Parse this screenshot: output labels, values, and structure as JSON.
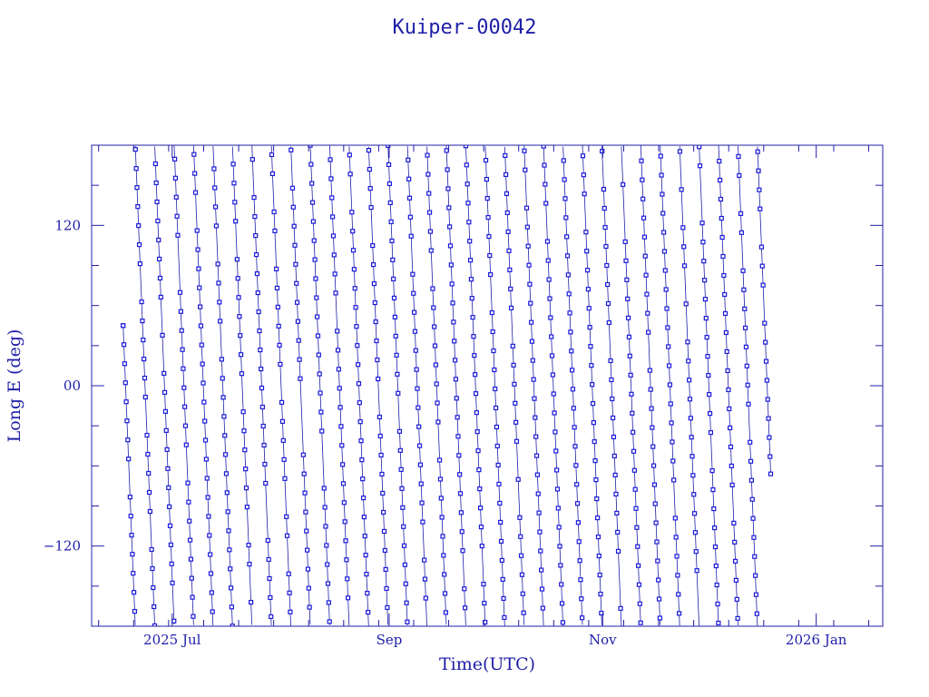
{
  "chart_data": {
    "type": "line",
    "title": "Kuiper-00042",
    "xlabel": "Time(UTC)",
    "ylabel": "Long E (deg)",
    "x_range": [
      "2025-06-08",
      "2026-01-20"
    ],
    "ylim": [
      -180,
      180
    ],
    "x_ticks": [
      {
        "label": "2025 Jul",
        "date": "2025-07-01"
      },
      {
        "label": "Sep",
        "date": "2025-09-01"
      },
      {
        "label": "Nov",
        "date": "2025-11-01"
      },
      {
        "label": "2026 Jan",
        "date": "2026-01-01"
      }
    ],
    "y_ticks": [
      {
        "label": "120",
        "value": 120
      },
      {
        "label": "00",
        "value": 0
      },
      {
        "label": "−120",
        "value": -120
      }
    ],
    "grid": false,
    "legend": "none",
    "series": [
      {
        "x_start": "2025-06-17",
        "x_end": "2025-12-19",
        "start_longitude": 45,
        "end_longitude": -66,
        "drift_deg_per_day": -65,
        "marker": "open-square",
        "color": "#1a1ad8"
      }
    ]
  }
}
